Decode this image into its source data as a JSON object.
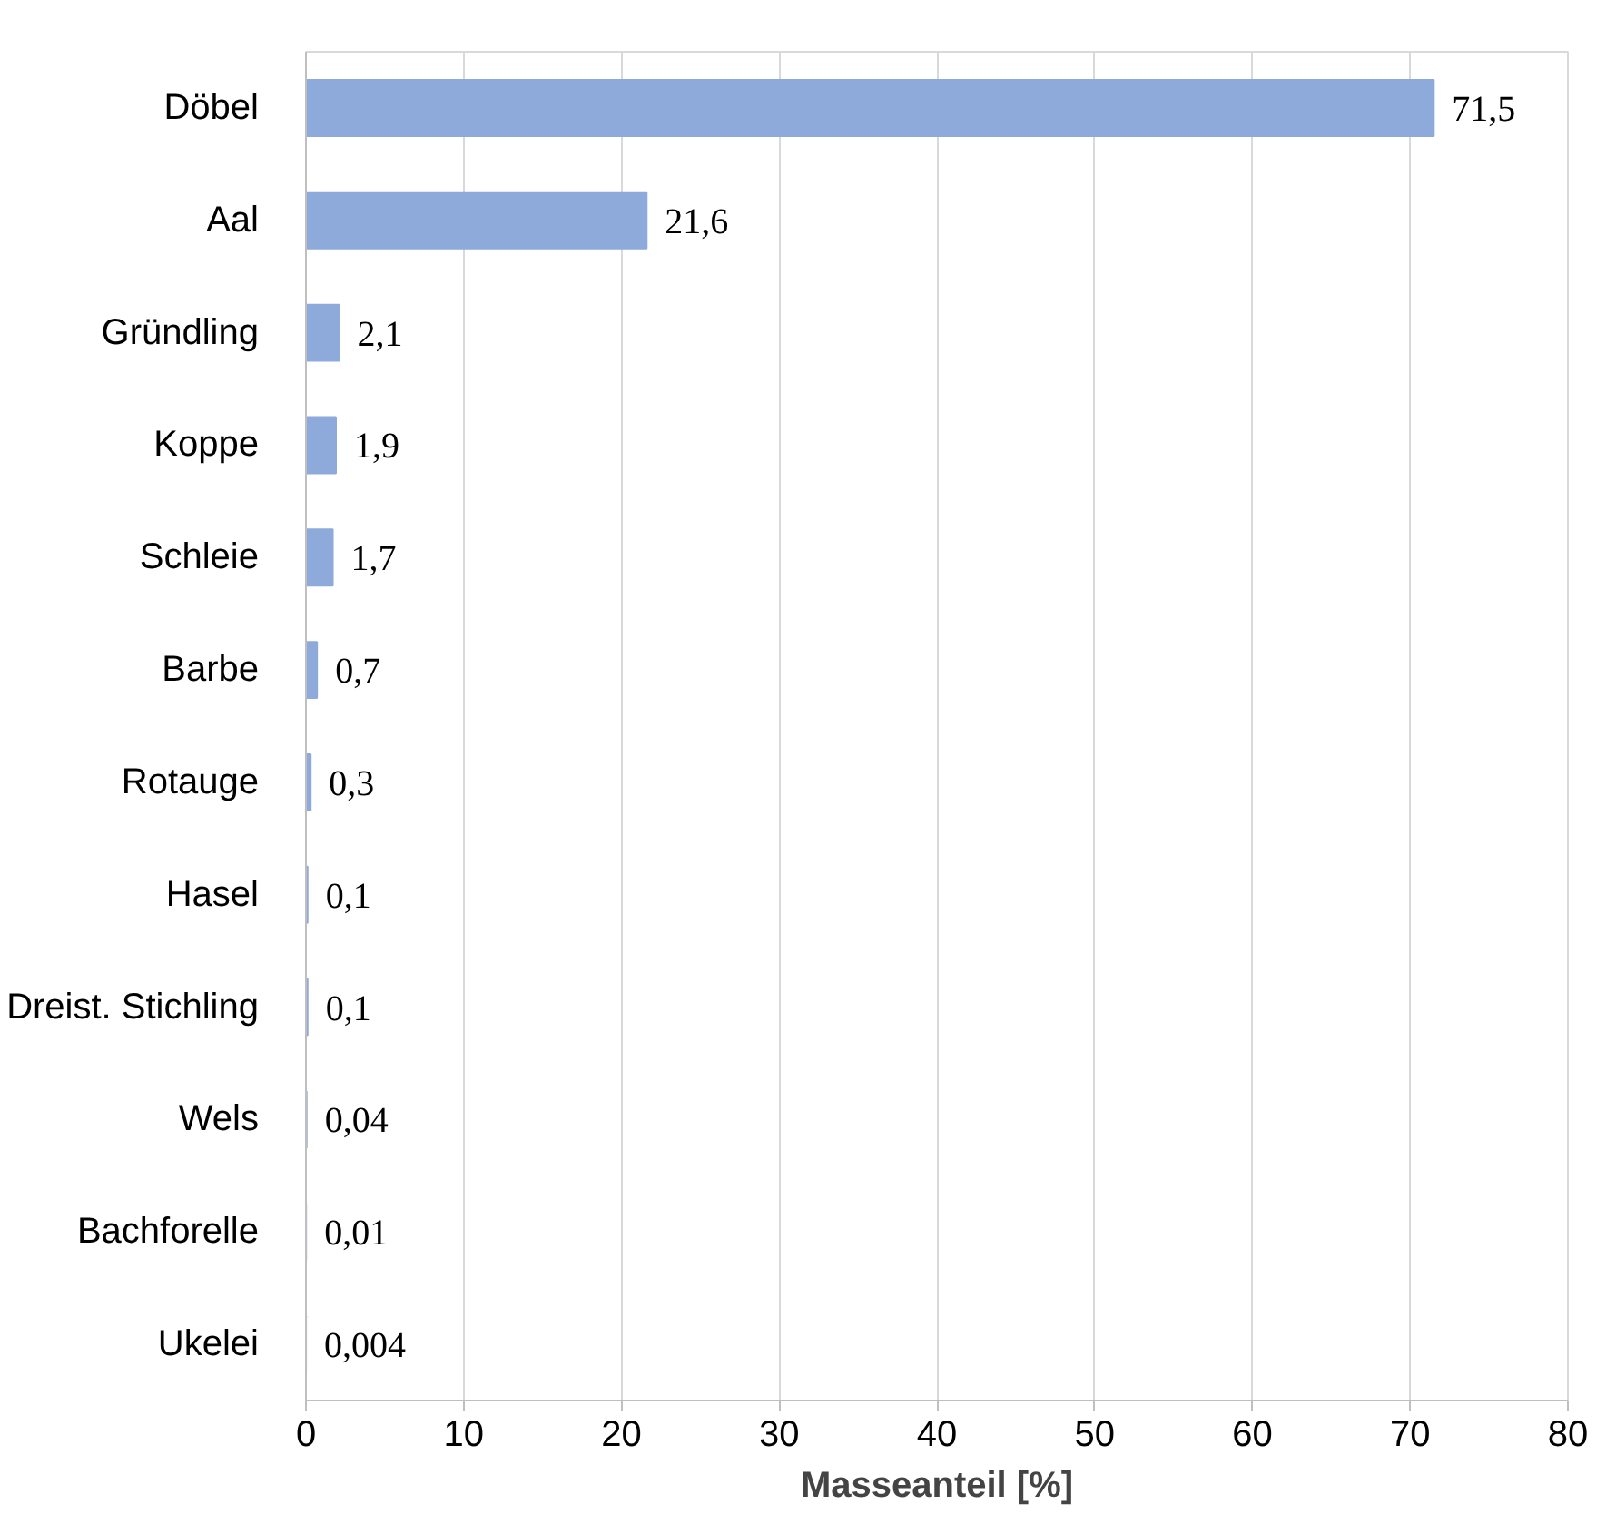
{
  "chart_data": {
    "type": "bar",
    "orientation": "horizontal",
    "xlabel": "Masseanteil [%]",
    "categories": [
      "Döbel",
      "Aal",
      "Gründling",
      "Koppe",
      "Schleie",
      "Barbe",
      "Rotauge",
      "Hasel",
      "Dreist. Stichling",
      "Wels",
      "Bachforelle",
      "Ukelei"
    ],
    "values": [
      71.5,
      21.6,
      2.1,
      1.9,
      1.7,
      0.7,
      0.3,
      0.1,
      0.1,
      0.04,
      0.01,
      0.004
    ],
    "value_labels": [
      "71,5",
      "21,6",
      "2,1",
      "1,9",
      "1,7",
      "0,7",
      "0,3",
      "0,1",
      "0,1",
      "0,04",
      "0,01",
      "0,004"
    ],
    "color": "#8eaadb",
    "xlim": [
      0,
      80
    ],
    "xticks": [
      0,
      10,
      20,
      30,
      40,
      50,
      60,
      70,
      80
    ],
    "grid": "x"
  }
}
